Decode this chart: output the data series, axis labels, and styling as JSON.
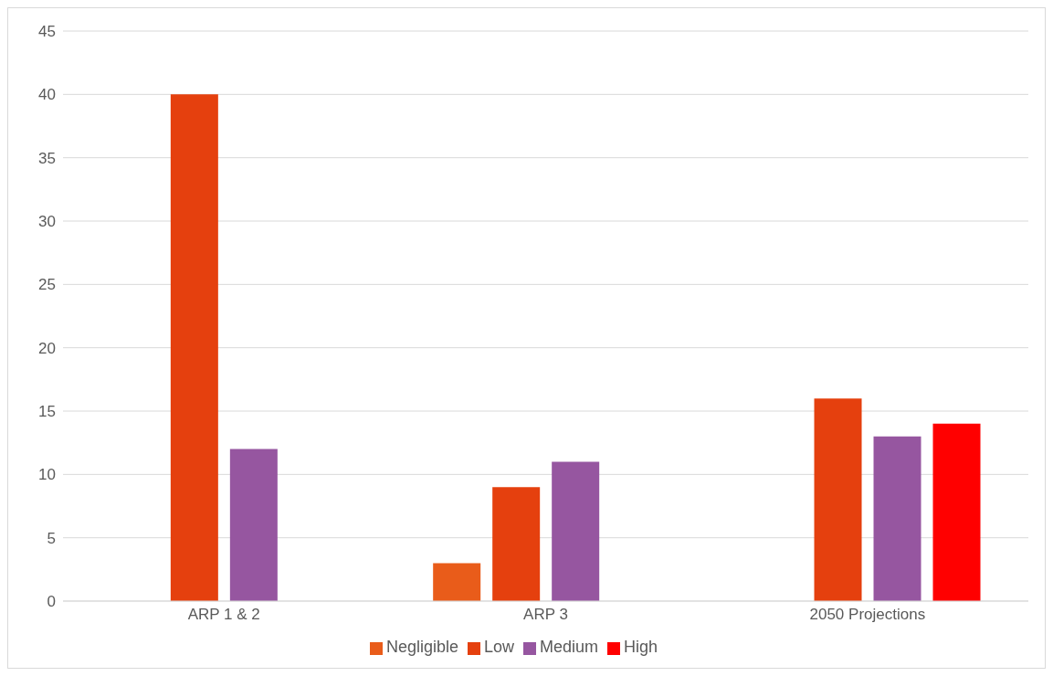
{
  "chart_data": {
    "type": "bar",
    "categories": [
      "ARP 1 & 2",
      "ARP 3",
      "2050 Projections"
    ],
    "series": [
      {
        "name": "Negligible",
        "color": "#e95c1a",
        "values": [
          null,
          3,
          null
        ]
      },
      {
        "name": "Low",
        "color": "#e5400e",
        "values": [
          40,
          9,
          16
        ]
      },
      {
        "name": "Medium",
        "color": "#9656a0",
        "values": [
          12,
          11,
          13
        ]
      },
      {
        "name": "High",
        "color": "#ff0000",
        "values": [
          null,
          null,
          14
        ]
      }
    ],
    "ylim": [
      0,
      45
    ],
    "yticks": [
      0,
      5,
      10,
      15,
      20,
      25,
      30,
      35,
      40,
      45
    ],
    "grid": "y",
    "legend": "bottom"
  }
}
